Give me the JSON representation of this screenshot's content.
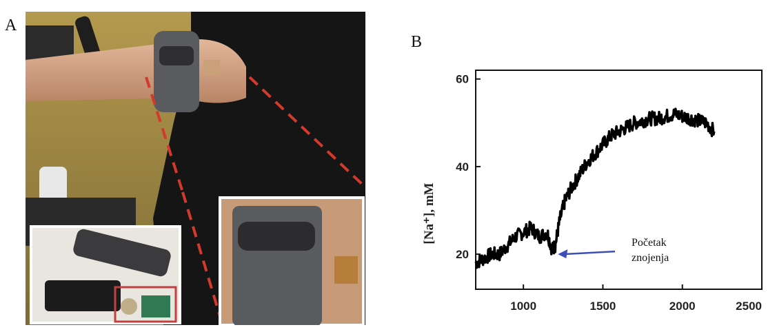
{
  "panel_labels": {
    "a": "A",
    "b": "B"
  },
  "chart_data": {
    "type": "line",
    "title": "",
    "xlabel": "",
    "ylabel": "[Na⁺], mM",
    "xlim": [
      700,
      2500
    ],
    "ylim": [
      12,
      62
    ],
    "x_ticks": [
      1000,
      1500,
      2000,
      2500
    ],
    "y_ticks": [
      20,
      40,
      60
    ],
    "grid": false,
    "series": [
      {
        "color": "#000000",
        "x": [
          700,
          750,
          800,
          850,
          900,
          950,
          1000,
          1050,
          1100,
          1150,
          1180,
          1200,
          1230,
          1260,
          1300,
          1350,
          1400,
          1450,
          1500,
          1550,
          1600,
          1650,
          1700,
          1750,
          1800,
          1850,
          1900,
          1950,
          2000,
          2050,
          2100,
          2150,
          2200
        ],
        "y": [
          18,
          19,
          20,
          20,
          22,
          24,
          25,
          26,
          24,
          25,
          21,
          22,
          28,
          32,
          35,
          38,
          41,
          43,
          45,
          47,
          48,
          49,
          50,
          50.5,
          51,
          51,
          51.5,
          52,
          51.5,
          51,
          50.5,
          50,
          48
        ]
      }
    ],
    "annotation": {
      "text_line1": "Početak",
      "text_line2": "znojenja",
      "arrow_color": "#3a4fb8",
      "target": [
        1200,
        20
      ]
    }
  }
}
